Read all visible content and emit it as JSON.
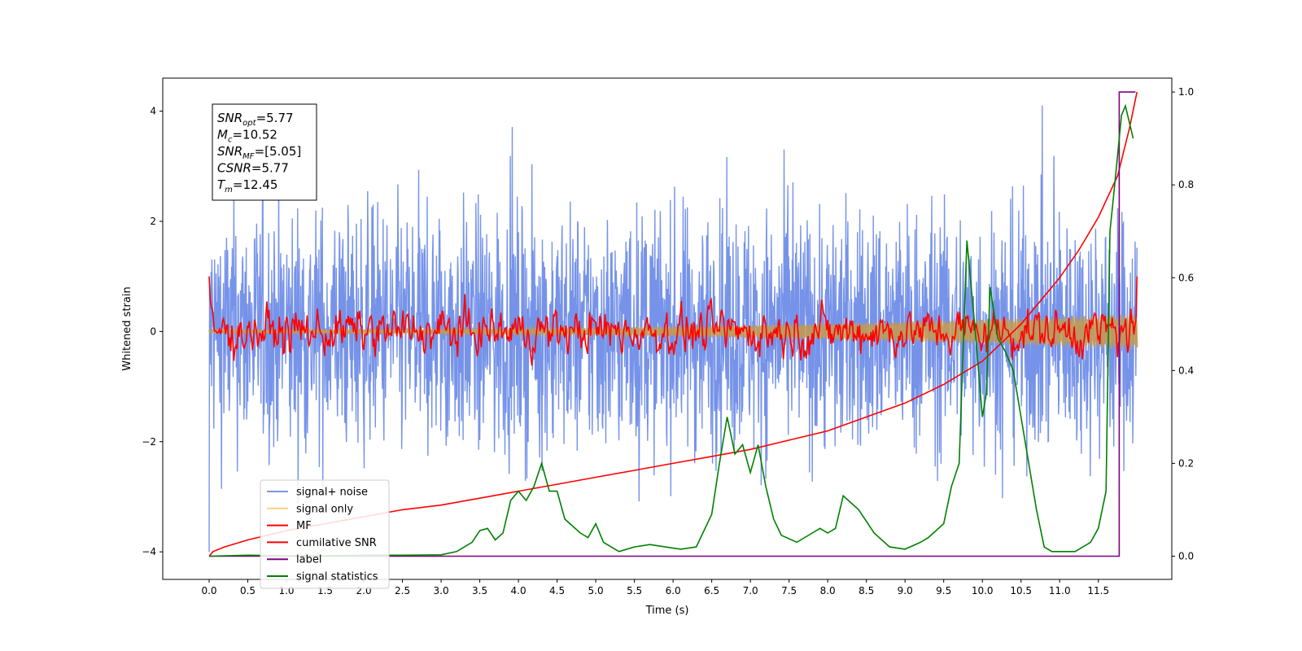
{
  "chart_data": {
    "type": "line",
    "xlabel": "Time (s)",
    "ylabel": "Whitened strain",
    "xlim": [
      -0.6,
      12.45
    ],
    "ylim": [
      -4.5,
      4.6
    ],
    "ylim_right": [
      -0.05,
      1.03
    ],
    "x_ticks": [
      "0.0",
      "0.5",
      "1.0",
      "1.5",
      "2.0",
      "2.5",
      "3.0",
      "3.5",
      "4.0",
      "4.5",
      "5.0",
      "5.5",
      "6.0",
      "6.5",
      "7.0",
      "7.5",
      "8.0",
      "8.5",
      "9.0",
      "9.5",
      "10.0",
      "10.5",
      "11.0",
      "11.5"
    ],
    "y_ticks_left": [
      "−4",
      "−2",
      "0",
      "2",
      "4"
    ],
    "y_ticks_right": [
      "0.0",
      "0.2",
      "0.4",
      "0.6",
      "0.8",
      "1.0"
    ],
    "grid": false,
    "legend_position": "lower-left",
    "info_box": {
      "lines": [
        {
          "sym": "SNR",
          "sub": "opt",
          "val": "=5.77"
        },
        {
          "sym": "M",
          "sub": "c",
          "val": "=10.52"
        },
        {
          "sym": "SNR",
          "sub": "MF",
          "val": "=[5.05]"
        },
        {
          "sym": "CSNR",
          "sub": "",
          "val": "=5.77"
        },
        {
          "sym": "T",
          "sub": "m",
          "val": "=12.45"
        }
      ]
    },
    "series": [
      {
        "name": "signal+ noise",
        "color": "#4169e1",
        "axis": "left",
        "kind": "noise_band",
        "x_range": [
          0,
          12.0
        ],
        "typical_amplitude": 2.0,
        "max_amplitude": 4.1
      },
      {
        "name": "signal only",
        "color": "#ffd27f",
        "axis": "left",
        "kind": "chirp_band",
        "x_range": [
          0,
          12.0
        ],
        "amplitude_start": 0.02,
        "amplitude_end": 0.32
      },
      {
        "name": "MF",
        "color": "#ff0000",
        "axis": "left",
        "kind": "noisy_trace",
        "x_range": [
          0,
          12.0
        ],
        "start_value": 1.0,
        "typical_amplitude": 0.35
      },
      {
        "name": "cumilative SNR",
        "color": "#ff0000",
        "axis": "right",
        "x": [
          0.0,
          0.05,
          0.2,
          0.5,
          1.0,
          1.5,
          2.0,
          2.5,
          3.0,
          3.5,
          4.0,
          4.5,
          5.0,
          5.5,
          6.0,
          6.5,
          7.0,
          7.5,
          8.0,
          8.5,
          9.0,
          9.5,
          10.0,
          10.5,
          10.75,
          11.0,
          11.25,
          11.5,
          11.75,
          11.9,
          12.0
        ],
        "values": [
          0.0,
          0.01,
          0.02,
          0.035,
          0.055,
          0.07,
          0.085,
          0.1,
          0.11,
          0.125,
          0.14,
          0.155,
          0.17,
          0.185,
          0.2,
          0.215,
          0.23,
          0.25,
          0.27,
          0.3,
          0.33,
          0.37,
          0.42,
          0.5,
          0.55,
          0.6,
          0.66,
          0.73,
          0.82,
          0.92,
          1.0
        ]
      },
      {
        "name": "label",
        "color": "#800080",
        "axis": "right",
        "x": [
          0.0,
          11.77,
          11.77,
          11.98
        ],
        "values": [
          0.0,
          0.0,
          1.0,
          1.0
        ]
      },
      {
        "name": "signal statistics",
        "color": "#008000",
        "axis": "right",
        "x": [
          0.0,
          0.5,
          1.0,
          1.5,
          2.0,
          2.5,
          3.0,
          3.2,
          3.4,
          3.5,
          3.6,
          3.7,
          3.8,
          3.9,
          4.0,
          4.1,
          4.2,
          4.3,
          4.4,
          4.5,
          4.6,
          4.8,
          4.9,
          5.0,
          5.1,
          5.3,
          5.5,
          5.7,
          5.9,
          6.1,
          6.3,
          6.5,
          6.6,
          6.7,
          6.75,
          6.8,
          6.9,
          7.0,
          7.1,
          7.2,
          7.3,
          7.4,
          7.6,
          7.8,
          7.9,
          8.0,
          8.1,
          8.2,
          8.4,
          8.6,
          8.8,
          9.0,
          9.2,
          9.3,
          9.5,
          9.6,
          9.7,
          9.8,
          9.9,
          10.0,
          10.05,
          10.1,
          10.2,
          10.3,
          10.4,
          10.5,
          10.6,
          10.7,
          10.8,
          10.9,
          11.0,
          11.2,
          11.4,
          11.5,
          11.6,
          11.65,
          11.7,
          11.8,
          11.85,
          11.95
        ],
        "values": [
          0.0,
          0.002,
          0.001,
          0.001,
          0.002,
          0.002,
          0.003,
          0.01,
          0.03,
          0.055,
          0.06,
          0.035,
          0.05,
          0.12,
          0.14,
          0.12,
          0.15,
          0.2,
          0.14,
          0.14,
          0.08,
          0.05,
          0.04,
          0.07,
          0.03,
          0.01,
          0.02,
          0.025,
          0.02,
          0.015,
          0.02,
          0.09,
          0.2,
          0.3,
          0.26,
          0.22,
          0.24,
          0.18,
          0.24,
          0.15,
          0.08,
          0.045,
          0.03,
          0.05,
          0.06,
          0.05,
          0.06,
          0.13,
          0.1,
          0.05,
          0.02,
          0.015,
          0.03,
          0.04,
          0.07,
          0.15,
          0.2,
          0.68,
          0.5,
          0.3,
          0.35,
          0.58,
          0.47,
          0.44,
          0.4,
          0.3,
          0.2,
          0.1,
          0.02,
          0.01,
          0.01,
          0.01,
          0.03,
          0.06,
          0.14,
          0.7,
          0.78,
          0.95,
          0.97,
          0.9
        ]
      }
    ]
  }
}
